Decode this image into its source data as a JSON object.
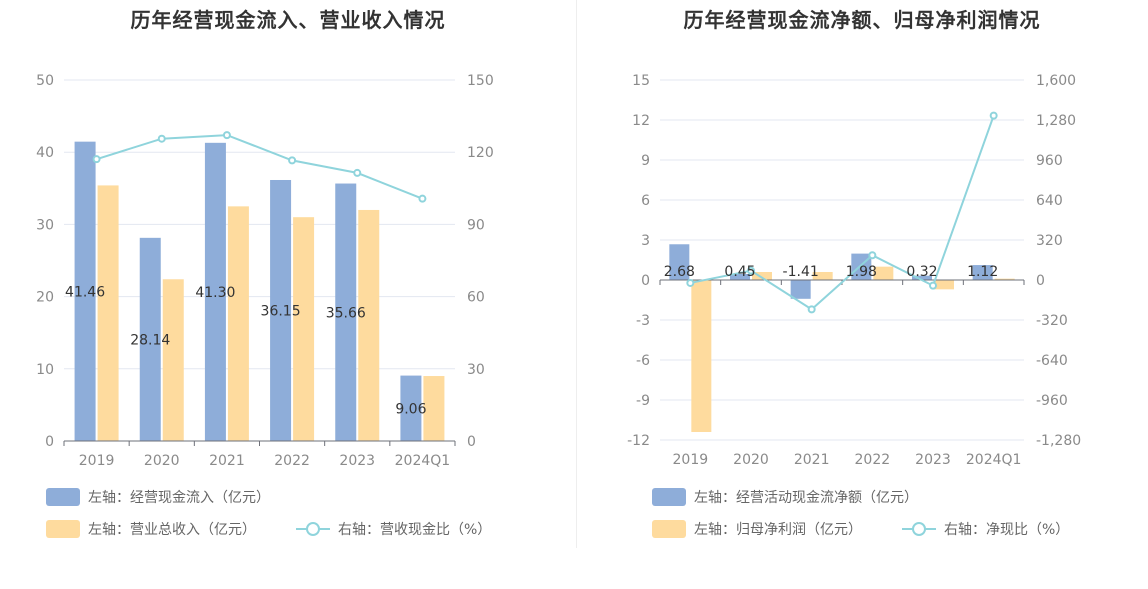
{
  "chart_data": [
    {
      "type": "bar",
      "title": "历年经营现金流入、营业收入情况",
      "categories": [
        "2019",
        "2020",
        "2021",
        "2022",
        "2023",
        "2024Q1"
      ],
      "y_left_ticks": [
        "0",
        "10",
        "20",
        "30",
        "40",
        "50"
      ],
      "y_right_ticks": [
        "0",
        "30",
        "60",
        "90",
        "120",
        "150"
      ],
      "ylim_left": [
        0,
        50
      ],
      "ylim_right": [
        0,
        150
      ],
      "series": [
        {
          "name": "左轴：经营现金流入（亿元）",
          "type": "bar",
          "axis": "left",
          "color": "#8eadd9",
          "values": [
            41.46,
            28.14,
            41.3,
            36.15,
            35.66,
            9.06
          ],
          "labels": [
            "41.46",
            "28.14",
            "41.30",
            "36.15",
            "35.66",
            "9.06"
          ]
        },
        {
          "name": "左轴：营业总收入（亿元）",
          "type": "bar",
          "axis": "left",
          "color": "#fedb9e",
          "values": [
            35.4,
            22.4,
            32.5,
            31.0,
            32.0,
            9.0
          ]
        },
        {
          "name": "右轴：营收现金比（%）",
          "type": "line",
          "axis": "right",
          "color": "#8fd4dc",
          "values": [
            117.1,
            125.6,
            127.1,
            116.6,
            111.4,
            100.7
          ]
        }
      ],
      "legend": [
        {
          "label": "左轴：经营现金流入（亿元）",
          "kind": "bar",
          "color": "#8eadd9"
        },
        {
          "label": "左轴：营业总收入（亿元）",
          "kind": "bar",
          "color": "#fedb9e"
        },
        {
          "label": "右轴：营收现金比（%）",
          "kind": "line",
          "color": "#8fd4dc"
        }
      ]
    },
    {
      "type": "bar",
      "title": "历年经营现金流净额、归母净利润情况",
      "categories": [
        "2019",
        "2020",
        "2021",
        "2022",
        "2023",
        "2024Q1"
      ],
      "y_left_ticks": [
        "-12",
        "-9",
        "-6",
        "-3",
        "0",
        "3",
        "6",
        "9",
        "12",
        "15"
      ],
      "y_right_ticks": [
        "-1,280",
        "-960",
        "-640",
        "-320",
        "0",
        "320",
        "640",
        "960",
        "1,280",
        "1,600"
      ],
      "ylim_left": [
        -12,
        15
      ],
      "ylim_right": [
        -1280,
        1600
      ],
      "series": [
        {
          "name": "左轴：经营活动现金流净额（亿元）",
          "type": "bar",
          "axis": "left",
          "color": "#8eadd9",
          "values": [
            2.68,
            0.45,
            -1.41,
            1.98,
            0.32,
            1.12
          ],
          "labels": [
            "2.68",
            "0.45",
            "-1.41",
            "1.98",
            "0.32",
            "1.12"
          ]
        },
        {
          "name": "左轴：归母净利润（亿元）",
          "type": "bar",
          "axis": "left",
          "color": "#fedb9e",
          "values": [
            -11.4,
            0.6,
            0.6,
            1.0,
            -0.7,
            0.1
          ]
        },
        {
          "name": "右轴：净现比（%）",
          "type": "line",
          "axis": "right",
          "color": "#8fd4dc",
          "values": [
            -23.5,
            75,
            -235,
            198,
            -45,
            1315
          ]
        }
      ],
      "legend": [
        {
          "label": "左轴：经营活动现金流净额（亿元）",
          "kind": "bar",
          "color": "#8eadd9"
        },
        {
          "label": "左轴：归母净利润（亿元）",
          "kind": "bar",
          "color": "#fedb9e"
        },
        {
          "label": "右轴：净现比（%）",
          "kind": "line",
          "color": "#8fd4dc"
        }
      ]
    }
  ]
}
